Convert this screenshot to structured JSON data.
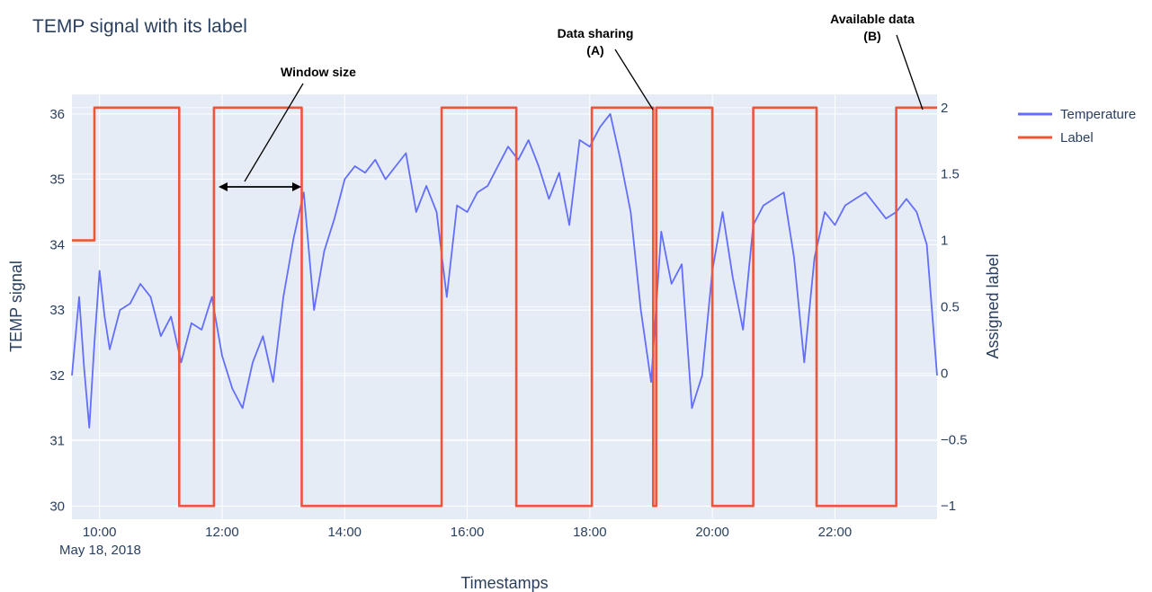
{
  "chart_data": {
    "type": "line",
    "title": "TEMP signal with its label",
    "xlabel": "Timestamps",
    "x_date_label": "May 18, 2018",
    "ylabel_left": "TEMP signal",
    "ylabel_right": "Assigned label",
    "x_range": [
      "09:33",
      "23:40"
    ],
    "x_ticks": [
      "10:00",
      "12:00",
      "14:00",
      "16:00",
      "18:00",
      "20:00",
      "22:00"
    ],
    "ylim_left": [
      29.8,
      36.3
    ],
    "y_ticks_left": [
      "30",
      "31",
      "32",
      "33",
      "34",
      "35",
      "36"
    ],
    "ylim_right": [
      -1.1,
      2.1
    ],
    "y_ticks_right": [
      "−1",
      "−0.5",
      "0",
      "0.5",
      "1",
      "1.5",
      "2"
    ],
    "grid": true,
    "legend_position": "top-right",
    "series": [
      {
        "name": "Temperature",
        "axis": "left",
        "color": "#636efa",
        "x": [
          "09:33",
          "09:40",
          "09:45",
          "09:50",
          "09:55",
          "10:00",
          "10:05",
          "10:10",
          "10:20",
          "10:30",
          "10:40",
          "10:50",
          "11:00",
          "11:10",
          "11:20",
          "11:30",
          "11:40",
          "11:50",
          "12:00",
          "12:10",
          "12:20",
          "12:30",
          "12:40",
          "12:50",
          "13:00",
          "13:10",
          "13:20",
          "13:30",
          "13:40",
          "13:50",
          "14:00",
          "14:10",
          "14:20",
          "14:30",
          "14:40",
          "14:50",
          "15:00",
          "15:10",
          "15:20",
          "15:30",
          "15:40",
          "15:50",
          "16:00",
          "16:10",
          "16:20",
          "16:30",
          "16:40",
          "16:50",
          "17:00",
          "17:10",
          "17:20",
          "17:30",
          "17:40",
          "17:50",
          "18:00",
          "18:10",
          "18:20",
          "18:30",
          "18:40",
          "18:50",
          "19:00",
          "19:10",
          "19:20",
          "19:30",
          "19:40",
          "19:50",
          "20:00",
          "20:10",
          "20:20",
          "20:30",
          "20:40",
          "20:50",
          "21:00",
          "21:10",
          "21:20",
          "21:30",
          "21:40",
          "21:50",
          "22:00",
          "22:10",
          "22:20",
          "22:30",
          "22:40",
          "22:50",
          "23:00",
          "23:10",
          "23:20",
          "23:30",
          "23:40"
        ],
        "values": [
          32.0,
          33.2,
          32.1,
          31.2,
          32.5,
          33.6,
          32.9,
          32.4,
          33.0,
          33.1,
          33.4,
          33.2,
          32.6,
          32.9,
          32.2,
          32.8,
          32.7,
          33.2,
          32.3,
          31.8,
          31.5,
          32.2,
          32.6,
          31.9,
          33.2,
          34.1,
          34.8,
          33.0,
          33.9,
          34.4,
          35.0,
          35.2,
          35.1,
          35.3,
          35.0,
          35.2,
          35.4,
          34.5,
          34.9,
          34.5,
          33.2,
          34.6,
          34.5,
          34.8,
          34.9,
          35.2,
          35.5,
          35.3,
          35.6,
          35.2,
          34.7,
          35.1,
          34.3,
          35.6,
          35.5,
          35.8,
          36.0,
          35.3,
          34.5,
          33.0,
          31.9,
          34.2,
          33.4,
          33.7,
          31.5,
          32.0,
          33.6,
          34.5,
          33.5,
          32.7,
          34.3,
          34.6,
          34.7,
          34.8,
          33.8,
          32.2,
          33.8,
          34.5,
          34.3,
          34.6,
          34.7,
          34.8,
          34.6,
          34.4,
          34.5,
          34.7,
          34.5,
          34.0,
          32.0
        ]
      },
      {
        "name": "Label",
        "axis": "right",
        "color": "#ef553b",
        "step": true,
        "x": [
          "09:33",
          "09:55",
          "09:55",
          "11:18",
          "11:18",
          "11:52",
          "11:52",
          "13:18",
          "13:18",
          "15:35",
          "15:35",
          "16:48",
          "16:48",
          "18:02",
          "18:02",
          "19:02",
          "19:02",
          "19:05",
          "19:05",
          "20:00",
          "20:00",
          "20:40",
          "20:40",
          "21:42",
          "21:42",
          "23:00",
          "23:00",
          "23:40"
        ],
        "values": [
          1,
          1,
          2,
          2,
          -1,
          -1,
          2,
          2,
          -1,
          -1,
          2,
          2,
          -1,
          -1,
          2,
          2,
          -1,
          -1,
          2,
          2,
          -1,
          -1,
          2,
          2,
          -1,
          -1,
          2,
          2
        ]
      }
    ],
    "annotations": [
      {
        "text": "Window size",
        "target": "width of one label segment (11:52–13:18)"
      },
      {
        "text": "Data sharing",
        "subtext": "(A)"
      },
      {
        "text": "Available data",
        "subtext": "(B)"
      }
    ]
  },
  "legend": {
    "temperature": "Temperature",
    "label": "Label"
  }
}
